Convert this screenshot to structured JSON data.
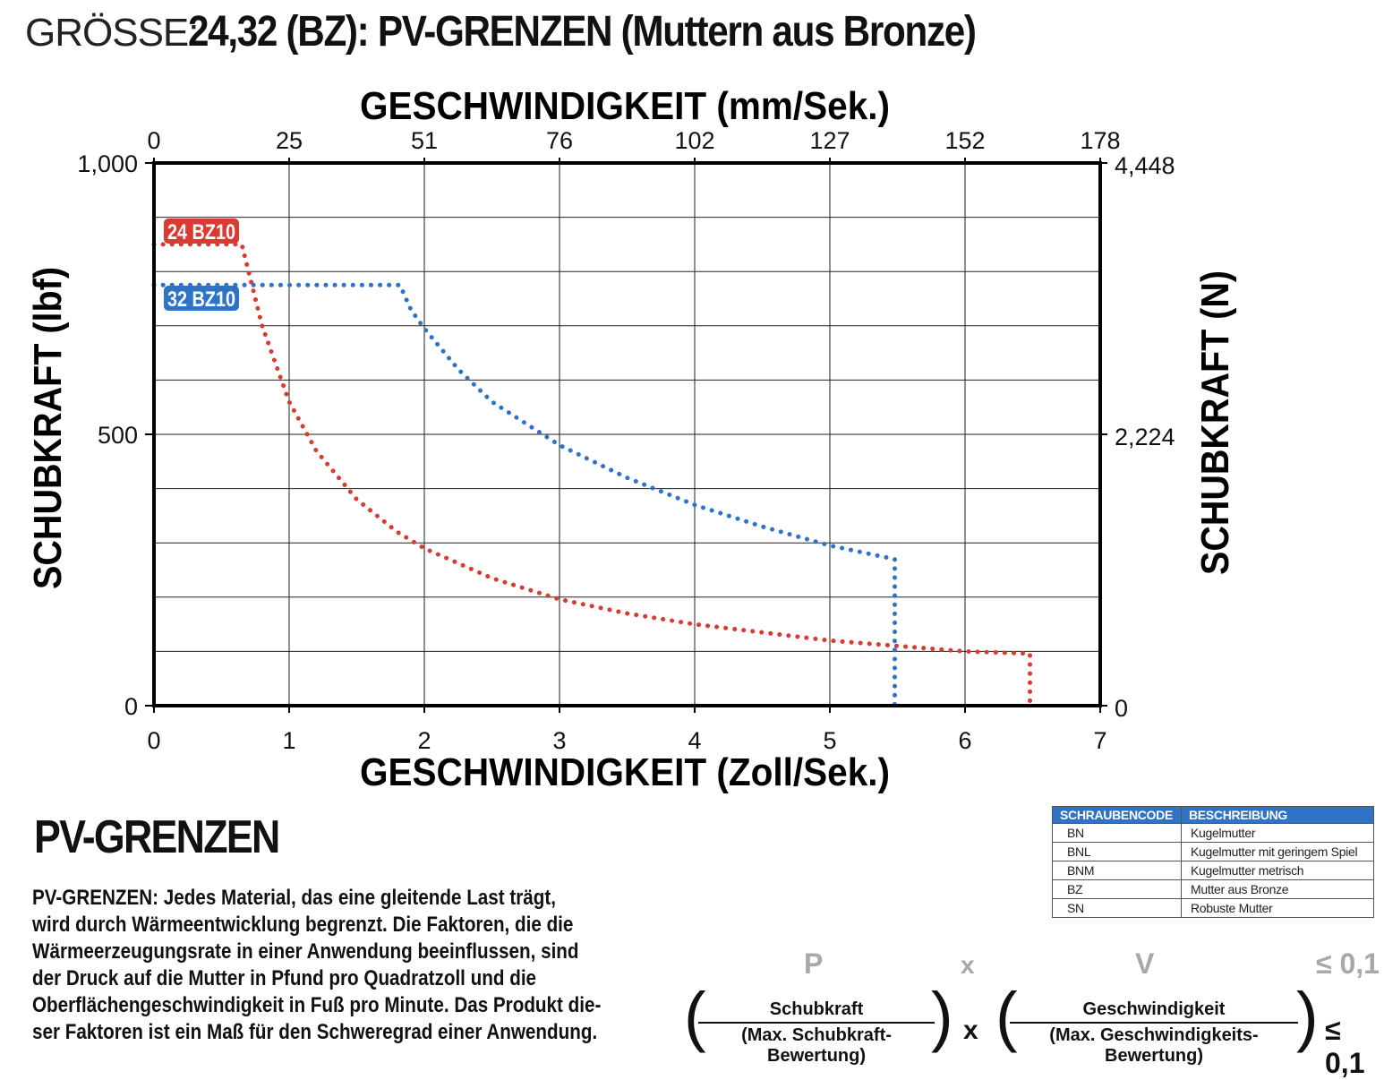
{
  "header": {
    "prefix": "GRÖSSE:",
    "title": "24,32 (BZ): PV-GRENZEN (Muttern aus Bronze)"
  },
  "chart_data": {
    "type": "line",
    "top_axis_label": "GESCHWINDIGKEIT (mm/Sek.)",
    "top_ticks": [
      "0",
      "25",
      "51",
      "76",
      "102",
      "127",
      "152",
      "178"
    ],
    "xlabel": "GESCHWINDIGKEIT (Zoll/Sek.)",
    "x_ticks": [
      "0",
      "1",
      "2",
      "3",
      "4",
      "5",
      "6",
      "7"
    ],
    "xlim": [
      0,
      7
    ],
    "ylabel": "SCHUBKRAFT (lbf)",
    "y_ticks": [
      "1,000",
      "500",
      "0"
    ],
    "ylim": [
      0,
      1000
    ],
    "y2label": "SCHUBKRAFT (N)",
    "y2_ticks": [
      "4,448",
      "2,224",
      "0"
    ],
    "grid": true,
    "series": [
      {
        "name": "24 BZ10",
        "color": "#d93b32",
        "x": [
          0,
          0.65,
          0.8,
          1.0,
          1.2,
          1.5,
          1.8,
          2.0,
          2.5,
          3.0,
          3.5,
          4.0,
          4.5,
          5.0,
          5.5,
          6.0,
          6.48,
          6.48
        ],
        "y": [
          850,
          850,
          700,
          560,
          470,
          380,
          320,
          290,
          235,
          196,
          170,
          150,
          135,
          120,
          110,
          100,
          96,
          0
        ]
      },
      {
        "name": "32 BZ10",
        "color": "#2f73c8",
        "x": [
          0,
          1.82,
          1.9,
          2.0,
          2.25,
          2.5,
          3.0,
          3.5,
          4.0,
          4.5,
          5.0,
          5.48,
          5.48
        ],
        "y": [
          775,
          775,
          730,
          695,
          620,
          560,
          480,
          420,
          370,
          330,
          295,
          270,
          0
        ]
      }
    ]
  },
  "pv_section": {
    "heading": "PV-GRENZEN",
    "body_lines": [
      "PV-GRENZEN: Jedes Material, das eine gleitende Last trägt,",
      "wird durch Wärmeentwicklung begrenzt. Die Faktoren, die die",
      "Wärmeerzeugungsrate in einer Anwendung beeinflussen, sind",
      "der Druck auf die Mutter in Pfund pro Quadratzoll und die",
      "Oberflächengeschwindigkeit in Fuß pro Minute. Das Produkt die-",
      "ser Faktoren ist ein Maß für den Schweregrad einer Anwendung."
    ]
  },
  "code_table": {
    "headers": [
      "SCHRAUBENCODE",
      "BESCHREIBUNG"
    ],
    "rows": [
      [
        "BN",
        "Kugelmutter"
      ],
      [
        "BNL",
        "Kugelmutter mit geringem Spiel"
      ],
      [
        "BNM",
        "Kugelmutter metrisch"
      ],
      [
        "BZ",
        "Mutter aus Bronze"
      ],
      [
        "SN",
        "Robuste Mutter"
      ]
    ]
  },
  "formula": {
    "p": "P",
    "x1": "x",
    "v": "V",
    "leq1": "≤ 0,1",
    "num1": "Schubkraft",
    "den1": "(Max. Schubkraft-Bewertung)",
    "x2": "x",
    "num2": "Geschwindigkeit",
    "den2": "(Max. Geschwindigkeits-Bewertung)",
    "leq2": "≤ 0,1"
  }
}
